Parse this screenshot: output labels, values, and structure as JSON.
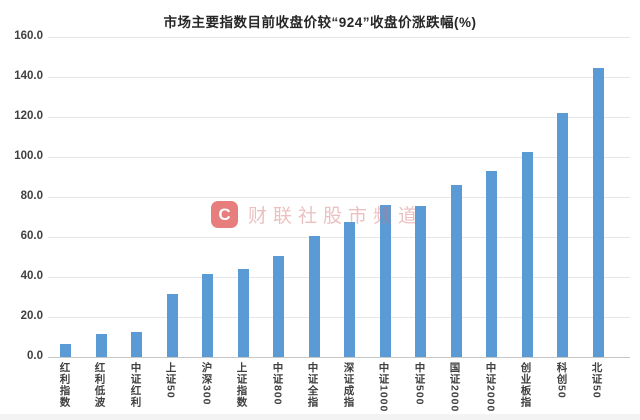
{
  "watermark": {
    "logo_letter": "C",
    "text": "财联社股市频道"
  },
  "chart_data": {
    "type": "bar",
    "title": "市场主要指数目前收盘价较“924”收盘价涨跌幅(%)",
    "categories": [
      "红利指数",
      "红利低波",
      "中证红利",
      "上证50",
      "沪深300",
      "上证指数",
      "中证800",
      "中证全指",
      "深证成指",
      "中证1000",
      "中证500",
      "国证2000",
      "中证2000",
      "创业板指",
      "科创50",
      "北证50"
    ],
    "values": [
      6.3,
      11.3,
      12.7,
      31.3,
      41.5,
      43.8,
      50.3,
      60.5,
      67.6,
      76.0,
      75.7,
      85.8,
      93.2,
      102.7,
      122.2,
      144.4
    ],
    "xlabel": "",
    "ylabel": "",
    "ylim": [
      0,
      160
    ],
    "ytick_step": 20,
    "ytick_labels": [
      "0.0",
      "20.0",
      "40.0",
      "60.0",
      "80.0",
      "100.0",
      "120.0",
      "140.0",
      "160.0"
    ],
    "grid": true,
    "legend": false,
    "bar_color": "#5B9BD5"
  },
  "colors": {
    "bar": "#5B9BD5",
    "gridline": "#E7E7E7",
    "axis_line": "#C6C6C6",
    "tick_text": "#404040",
    "title_text": "#262626",
    "background": "#FFFFFF"
  }
}
